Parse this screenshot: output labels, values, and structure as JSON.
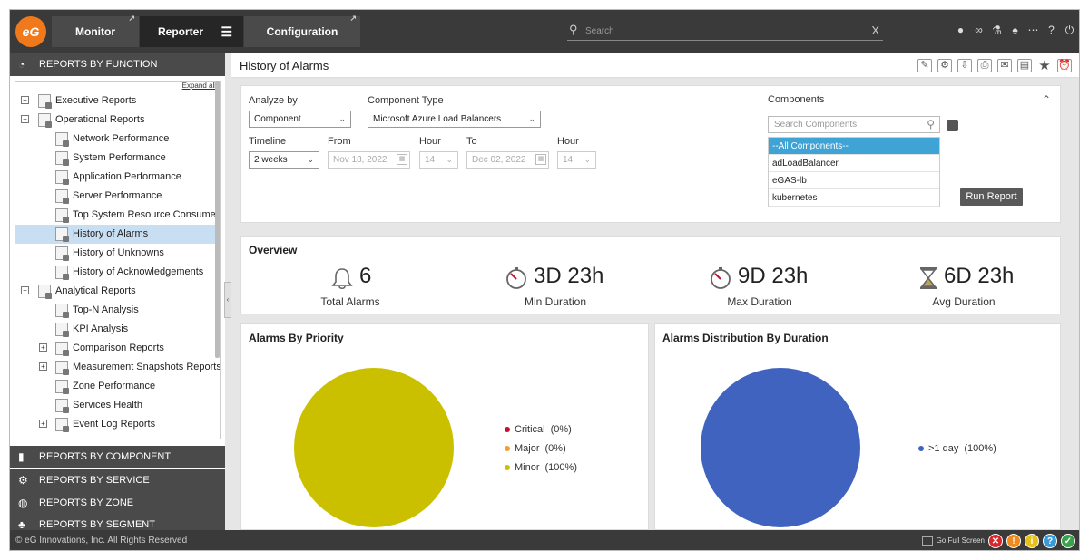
{
  "app": {
    "logo_text": "eG",
    "nav": {
      "monitor": "Monitor",
      "reporter": "Reporter",
      "configuration": "Configuration"
    },
    "search": {
      "placeholder": "Search",
      "clear": "X"
    }
  },
  "sidebar": {
    "section_function": "REPORTS BY FUNCTION",
    "expand_all": "Expand all",
    "tree": [
      {
        "label": "Executive Reports"
      },
      {
        "label": "Operational Reports"
      },
      {
        "label": "Network Performance"
      },
      {
        "label": "System Performance"
      },
      {
        "label": "Application Performance"
      },
      {
        "label": "Server Performance"
      },
      {
        "label": "Top System Resource Consumers"
      },
      {
        "label": "History of Alarms"
      },
      {
        "label": "History of Unknowns"
      },
      {
        "label": "History of Acknowledgements"
      },
      {
        "label": "Analytical Reports"
      },
      {
        "label": "Top-N Analysis"
      },
      {
        "label": "KPI Analysis"
      },
      {
        "label": "Comparison Reports"
      },
      {
        "label": "Measurement Snapshots Reports"
      },
      {
        "label": "Zone Performance"
      },
      {
        "label": "Services Health"
      },
      {
        "label": "Event Log Reports"
      }
    ],
    "section_component": "REPORTS BY COMPONENT",
    "section_service": "REPORTS BY SERVICE",
    "section_zone": "REPORTS BY ZONE",
    "section_segment": "REPORTS BY SEGMENT"
  },
  "main": {
    "title": "History of Alarms",
    "filters": {
      "analyze_by_label": "Analyze by",
      "analyze_by_value": "Component",
      "component_type_label": "Component Type",
      "component_type_value": "Microsoft Azure Load Balancers",
      "timeline_label": "Timeline",
      "timeline_value": "2 weeks",
      "from_label": "From",
      "from_value": "Nov 18, 2022",
      "from_hour_label": "Hour",
      "from_hour_value": "14",
      "to_label": "To",
      "to_value": "Dec 02, 2022",
      "to_hour_label": "Hour",
      "to_hour_value": "14",
      "components_label": "Components",
      "components_search_placeholder": "Search Components",
      "components": [
        "--All Components--",
        "adLoadBalancer",
        "eGAS-lb",
        "kubernetes"
      ],
      "run_report": "Run Report"
    },
    "overview": {
      "title": "Overview",
      "total_alarms_value": "6",
      "total_alarms_label": "Total Alarms",
      "min_duration_value": "3D 23h",
      "min_duration_label": "Min Duration",
      "max_duration_value": "9D 23h",
      "max_duration_label": "Max Duration",
      "avg_duration_value": "6D 23h",
      "avg_duration_label": "Avg Duration"
    },
    "charts": {
      "priority_title": "Alarms By Priority",
      "duration_title": "Alarms Distribution By Duration"
    }
  },
  "footer": {
    "copyright": "© eG Innovations, Inc. All Rights Reserved",
    "full_screen": "Go Full Screen"
  },
  "colors": {
    "critical": "#c8102e",
    "major": "#f0a030",
    "minor": "#cbc000",
    "duration": "#3f63be",
    "brand": "#f07a1b"
  },
  "chart_data": [
    {
      "type": "pie",
      "title": "Alarms By Priority",
      "categories": [
        "Critical",
        "Major",
        "Minor"
      ],
      "values": [
        0,
        0,
        100
      ],
      "labels": [
        "(0%)",
        "(0%)",
        "(100%)"
      ],
      "colors": [
        "#c8102e",
        "#f0a030",
        "#cbc000"
      ]
    },
    {
      "type": "pie",
      "title": "Alarms Distribution By Duration",
      "categories": [
        ">1 day"
      ],
      "values": [
        100
      ],
      "labels": [
        "(100%)"
      ],
      "colors": [
        "#3f63be"
      ]
    }
  ]
}
